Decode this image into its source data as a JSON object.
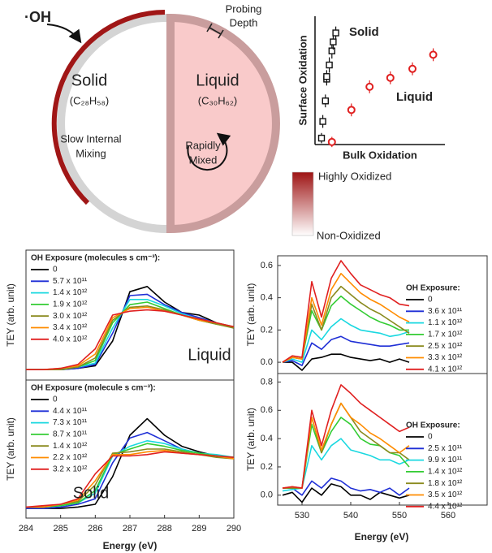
{
  "diagram": {
    "radical": "·OH",
    "solid_title": "Solid",
    "solid_formula": "(C₂₈H₅₈)",
    "solid_note": [
      "Slow Internal",
      "Mixing"
    ],
    "liquid_title": "Liquid",
    "liquid_formula": "(C₃₀H₆₂)",
    "liquid_note": [
      "Rapidly",
      "Mixed"
    ],
    "probing": [
      "Probing",
      "Depth"
    ],
    "colorbar_high": "Highly Oxidized",
    "colorbar_low": "Non-Oxidized"
  },
  "chart_data": [
    {
      "type": "scatter",
      "xlabel": "Bulk Oxidation",
      "ylabel": "Surface Oxidation",
      "xlim": [
        0,
        1
      ],
      "ylim": [
        0,
        1
      ],
      "series": [
        {
          "name": "Solid",
          "color": "#111111",
          "marker": "square",
          "x": [
            0.05,
            0.06,
            0.08,
            0.09,
            0.09,
            0.11,
            0.13,
            0.14,
            0.16
          ],
          "values": [
            0.05,
            0.18,
            0.34,
            0.51,
            0.53,
            0.62,
            0.73,
            0.8,
            0.87
          ],
          "errors": [
            0.04,
            0.05,
            0.05,
            0.05,
            0.05,
            0.06,
            0.06,
            0.06,
            0.05
          ]
        },
        {
          "name": "Liquid",
          "color": "#e02020",
          "marker": "circle",
          "x": [
            0.13,
            0.28,
            0.42,
            0.58,
            0.75,
            0.91
          ],
          "values": [
            0.02,
            0.27,
            0.45,
            0.52,
            0.59,
            0.7
          ],
          "errors": [
            0.04,
            0.05,
            0.05,
            0.05,
            0.05,
            0.05
          ]
        }
      ]
    },
    {
      "type": "line",
      "ylabel": "TEY (arb. unit)",
      "label": "Liquid",
      "legend_title": "OH Exposure (molecules s cm⁻³):",
      "xlim": [
        284,
        290
      ],
      "ylim": [
        0,
        1
      ],
      "x": [
        284,
        284.5,
        285,
        285.5,
        286,
        286.5,
        287,
        287.5,
        288,
        288.5,
        289,
        289.5,
        290
      ],
      "series": [
        {
          "name": "0",
          "color": "#000000",
          "values": [
            0.08,
            0.08,
            0.08,
            0.09,
            0.11,
            0.3,
            0.68,
            0.72,
            0.6,
            0.52,
            0.5,
            0.44,
            0.4
          ]
        },
        {
          "name": "5.7 x 10¹¹",
          "color": "#1f2fd6",
          "values": [
            0.08,
            0.08,
            0.08,
            0.09,
            0.12,
            0.36,
            0.65,
            0.66,
            0.58,
            0.52,
            0.48,
            0.44,
            0.41
          ]
        },
        {
          "name": "1.4 x 10¹²",
          "color": "#1ad8e0",
          "values": [
            0.08,
            0.08,
            0.08,
            0.1,
            0.13,
            0.4,
            0.62,
            0.62,
            0.57,
            0.51,
            0.47,
            0.44,
            0.41
          ]
        },
        {
          "name": "1.9 x 10¹²",
          "color": "#33cc33",
          "values": [
            0.08,
            0.08,
            0.08,
            0.1,
            0.15,
            0.44,
            0.58,
            0.6,
            0.55,
            0.5,
            0.46,
            0.43,
            0.41
          ]
        },
        {
          "name": "3.0 x 10¹²",
          "color": "#8a8a1e",
          "values": [
            0.08,
            0.08,
            0.08,
            0.1,
            0.17,
            0.46,
            0.56,
            0.57,
            0.54,
            0.5,
            0.46,
            0.43,
            0.4
          ]
        },
        {
          "name": "3.4 x 10¹²",
          "color": "#ff8c00",
          "values": [
            0.08,
            0.08,
            0.09,
            0.11,
            0.2,
            0.48,
            0.55,
            0.56,
            0.53,
            0.5,
            0.46,
            0.44,
            0.41
          ]
        },
        {
          "name": "4.0 x 10¹²",
          "color": "#e02020",
          "values": [
            0.08,
            0.08,
            0.09,
            0.12,
            0.24,
            0.5,
            0.53,
            0.54,
            0.53,
            0.5,
            0.47,
            0.44,
            0.41
          ]
        }
      ]
    },
    {
      "type": "line",
      "ylabel": "TEY (arb. unit)",
      "xlabel": "Energy (eV)",
      "label": "Solid",
      "legend_title": "OH Exposure (molecule s cm⁻³):",
      "xlim": [
        284,
        290
      ],
      "ylim": [
        0,
        1
      ],
      "xticks": [
        284,
        285,
        286,
        287,
        288,
        289,
        290
      ],
      "x": [
        284,
        284.5,
        285,
        285.5,
        286,
        286.5,
        287,
        287.5,
        288,
        288.5,
        289,
        289.5,
        290
      ],
      "series": [
        {
          "name": "0",
          "color": "#000000",
          "values": [
            0.07,
            0.07,
            0.07,
            0.08,
            0.1,
            0.3,
            0.6,
            0.72,
            0.6,
            0.52,
            0.48,
            0.45,
            0.44
          ]
        },
        {
          "name": "4.4 x 10¹¹",
          "color": "#1f2fd6",
          "values": [
            0.07,
            0.07,
            0.08,
            0.1,
            0.14,
            0.4,
            0.58,
            0.62,
            0.56,
            0.5,
            0.47,
            0.45,
            0.44
          ]
        },
        {
          "name": "7.3 x 10¹¹",
          "color": "#1ad8e0",
          "values": [
            0.08,
            0.08,
            0.09,
            0.11,
            0.18,
            0.45,
            0.52,
            0.56,
            0.54,
            0.5,
            0.47,
            0.46,
            0.44
          ]
        },
        {
          "name": "8.7 x 10¹¹",
          "color": "#33cc33",
          "values": [
            0.08,
            0.08,
            0.09,
            0.11,
            0.2,
            0.46,
            0.5,
            0.54,
            0.52,
            0.49,
            0.47,
            0.45,
            0.44
          ]
        },
        {
          "name": "1.4 x 10¹²",
          "color": "#8a8a1e",
          "values": [
            0.08,
            0.08,
            0.1,
            0.12,
            0.24,
            0.47,
            0.48,
            0.5,
            0.5,
            0.48,
            0.46,
            0.44,
            0.43
          ]
        },
        {
          "name": "2.2 x 10¹²",
          "color": "#ff8c00",
          "values": [
            0.08,
            0.08,
            0.1,
            0.13,
            0.27,
            0.46,
            0.46,
            0.48,
            0.49,
            0.47,
            0.46,
            0.45,
            0.43
          ]
        },
        {
          "name": "3.2 x 10¹²",
          "color": "#e02020",
          "values": [
            0.08,
            0.09,
            0.1,
            0.14,
            0.32,
            0.45,
            0.45,
            0.46,
            0.48,
            0.47,
            0.46,
            0.45,
            0.44
          ]
        }
      ]
    },
    {
      "type": "line",
      "ylabel": "TEY (arb. unit)",
      "legend_title": "OH Exposure:",
      "xlim": [
        525,
        568
      ],
      "ylim": [
        -0.07,
        0.66
      ],
      "yticks": [
        {
          "value": 0,
          "label": "0.0"
        },
        0.2,
        0.4,
        0.6
      ],
      "x": [
        526,
        528,
        530,
        532,
        534,
        536,
        538,
        540,
        542,
        544,
        546,
        548,
        550,
        552
      ],
      "series": [
        {
          "name": "0",
          "color": "#000000",
          "values": [
            0.0,
            0.0,
            -0.05,
            0.02,
            0.03,
            0.05,
            0.05,
            0.03,
            0.02,
            0.01,
            0.02,
            0.0,
            0.02,
            0.0
          ]
        },
        {
          "name": "3.6 x 10¹¹",
          "color": "#1f2fd6",
          "values": [
            0.0,
            0.01,
            -0.02,
            0.12,
            0.08,
            0.14,
            0.16,
            0.13,
            0.12,
            0.11,
            0.1,
            0.1,
            0.11,
            0.12
          ]
        },
        {
          "name": "1.1 x 10¹²",
          "color": "#1ad8e0",
          "values": [
            0.0,
            0.02,
            0.0,
            0.2,
            0.14,
            0.22,
            0.27,
            0.23,
            0.2,
            0.19,
            0.18,
            0.16,
            0.17,
            0.19
          ]
        },
        {
          "name": "1.7 x 10¹²",
          "color": "#33cc33",
          "values": [
            0.0,
            0.03,
            0.02,
            0.32,
            0.2,
            0.35,
            0.41,
            0.36,
            0.32,
            0.28,
            0.25,
            0.23,
            0.2,
            0.2
          ]
        },
        {
          "name": "2.5 x 10¹²",
          "color": "#8a8a1e",
          "values": [
            0.0,
            0.03,
            0.02,
            0.36,
            0.2,
            0.4,
            0.47,
            0.42,
            0.37,
            0.33,
            0.3,
            0.26,
            0.22,
            0.18
          ]
        },
        {
          "name": "3.3 x 10¹²",
          "color": "#ff8c00",
          "values": [
            0.0,
            0.03,
            0.02,
            0.4,
            0.23,
            0.45,
            0.55,
            0.49,
            0.43,
            0.39,
            0.36,
            0.32,
            0.28,
            0.25
          ]
        },
        {
          "name": "4.1 x 10¹²",
          "color": "#e02020",
          "values": [
            0.0,
            0.04,
            0.03,
            0.5,
            0.28,
            0.52,
            0.63,
            0.55,
            0.48,
            0.45,
            0.42,
            0.4,
            0.36,
            0.35
          ]
        }
      ]
    },
    {
      "type": "line",
      "ylabel": "TEY (arb. unit)",
      "xlabel": "Energy (eV)",
      "legend_title": "OH Exposure:",
      "xlim": [
        525,
        568
      ],
      "ylim": [
        -0.07,
        0.86
      ],
      "xticks": [
        530,
        540,
        550,
        560
      ],
      "yticks": [
        {
          "value": 0,
          "label": "0.0"
        },
        0.2,
        0.4,
        0.6,
        0.8
      ],
      "x": [
        526,
        528,
        530,
        532,
        534,
        536,
        538,
        540,
        542,
        544,
        546,
        548,
        550,
        552
      ],
      "series": [
        {
          "name": "0",
          "color": "#000000",
          "values": [
            0.0,
            0.02,
            -0.05,
            0.05,
            0.0,
            0.08,
            0.06,
            0.0,
            0.0,
            -0.03,
            0.02,
            0.0,
            -0.02,
            0.0
          ]
        },
        {
          "name": "2.5 x 10¹¹",
          "color": "#1f2fd6",
          "values": [
            0.05,
            0.05,
            0.0,
            0.1,
            0.05,
            0.12,
            0.1,
            0.05,
            0.03,
            0.04,
            0.02,
            0.05,
            0.0,
            0.05
          ]
        },
        {
          "name": "9.9 x 10¹¹",
          "color": "#1ad8e0",
          "values": [
            0.03,
            0.04,
            0.05,
            0.35,
            0.25,
            0.35,
            0.4,
            0.32,
            0.3,
            0.28,
            0.25,
            0.25,
            0.22,
            0.25
          ]
        },
        {
          "name": "1.4 x 10¹²",
          "color": "#33cc33",
          "values": [
            0.05,
            0.05,
            0.05,
            0.5,
            0.3,
            0.45,
            0.55,
            0.5,
            0.4,
            0.36,
            0.35,
            0.3,
            0.28,
            0.2
          ]
        },
        {
          "name": "1.8 x 10¹²",
          "color": "#8a8a1e",
          "values": [
            0.05,
            0.05,
            0.05,
            0.55,
            0.3,
            0.5,
            0.65,
            0.55,
            0.45,
            0.4,
            0.35,
            0.3,
            0.3,
            0.25
          ]
        },
        {
          "name": "3.5 x 10¹²",
          "color": "#ff8c00",
          "values": [
            0.05,
            0.06,
            0.05,
            0.55,
            0.32,
            0.5,
            0.65,
            0.55,
            0.5,
            0.44,
            0.4,
            0.35,
            0.3,
            0.35
          ]
        },
        {
          "name": "4.4 x 10¹²",
          "color": "#e02020",
          "values": [
            0.05,
            0.06,
            0.05,
            0.6,
            0.35,
            0.6,
            0.78,
            0.72,
            0.65,
            0.6,
            0.55,
            0.5,
            0.45,
            0.48
          ]
        }
      ]
    }
  ]
}
